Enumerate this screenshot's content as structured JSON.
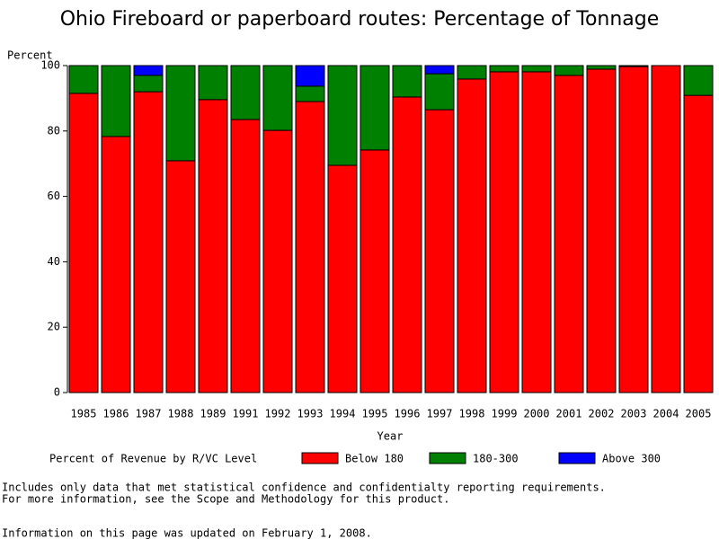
{
  "chart_data": {
    "type": "stacked-bar",
    "title": "Ohio Fireboard or paperboard routes: Percentage of Tonnage",
    "y_label": "Percent",
    "x_label": "Year",
    "legend_title": "Percent of Revenue by R/VC Level",
    "categories": [
      "1985",
      "1986",
      "1987",
      "1988",
      "1989",
      "1991",
      "1992",
      "1993",
      "1994",
      "1995",
      "1996",
      "1997",
      "1998",
      "1999",
      "2000",
      "2001",
      "2002",
      "2003",
      "2004",
      "2005"
    ],
    "series": [
      {
        "name": "Below 180",
        "color": "#ff0000",
        "values": [
          91.5,
          78.3,
          92,
          70.9,
          89.6,
          83.5,
          80.2,
          89,
          69.5,
          74.2,
          90.4,
          86.5,
          95.9,
          98.1,
          98.1,
          97,
          98.9,
          99.7,
          100,
          90.9
        ]
      },
      {
        "name": "180-300",
        "color": "#008000",
        "values": [
          8.5,
          21.7,
          5,
          29.1,
          10.4,
          16.5,
          19.8,
          4.7,
          30.5,
          25.8,
          9.6,
          11,
          4.1,
          1.9,
          1.9,
          3,
          1.1,
          0.3,
          0,
          9.1
        ]
      },
      {
        "name": "Above 300",
        "color": "#0000ff",
        "values": [
          0,
          0,
          3,
          0,
          0,
          0,
          0,
          6.3,
          0,
          0,
          0,
          2.5,
          0,
          0,
          0,
          0,
          0,
          0,
          0,
          0
        ]
      }
    ],
    "ylim": [
      0,
      100
    ],
    "yticks": [
      0,
      20,
      40,
      60,
      80,
      100
    ],
    "notes": [
      "Includes only data that met statistical confidence and confidentialty reporting requirements.",
      "For more information, see the Scope and Methodology for this product.",
      "Information on this page was updated on February 1, 2008."
    ]
  }
}
